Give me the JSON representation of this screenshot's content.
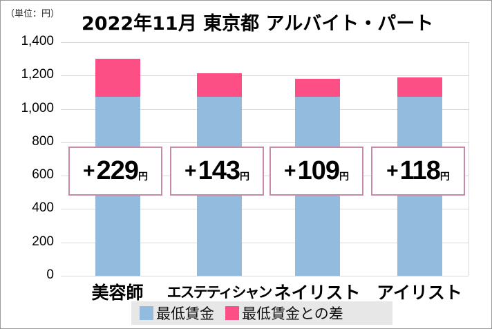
{
  "chart_data": {
    "type": "bar",
    "stacked": true,
    "title": "2022年11月 東京都 アルバイト・パート",
    "unit_label": "（単位：円）",
    "xlabel": "",
    "ylabel": "",
    "ylim": [
      0,
      1400
    ],
    "yticks": [
      "0",
      "200",
      "400",
      "600",
      "800",
      "1,000",
      "1,200",
      "1,400"
    ],
    "grid": true,
    "legend_position": "bottom",
    "categories": [
      "美容師",
      "エステティシャン",
      "ネイリスト",
      "アイリスト"
    ],
    "series": [
      {
        "name": "最低賃金",
        "color": "#92bbdd",
        "values": [
          1072,
          1072,
          1072,
          1072
        ]
      },
      {
        "name": "最低賃金との差",
        "color": "#fb4f85",
        "values": [
          229,
          143,
          109,
          118
        ]
      }
    ],
    "annotations": [
      {
        "plus": "+",
        "value": "229",
        "unit": "円"
      },
      {
        "plus": "+",
        "value": "143",
        "unit": "円"
      },
      {
        "plus": "+",
        "value": "109",
        "unit": "円"
      },
      {
        "plus": "+",
        "value": "118",
        "unit": "円"
      }
    ]
  },
  "legend": {
    "items": [
      {
        "label": "最低賃金",
        "color": "#92bbdd"
      },
      {
        "label": "最低賃金との差",
        "color": "#fb4f85"
      }
    ]
  }
}
